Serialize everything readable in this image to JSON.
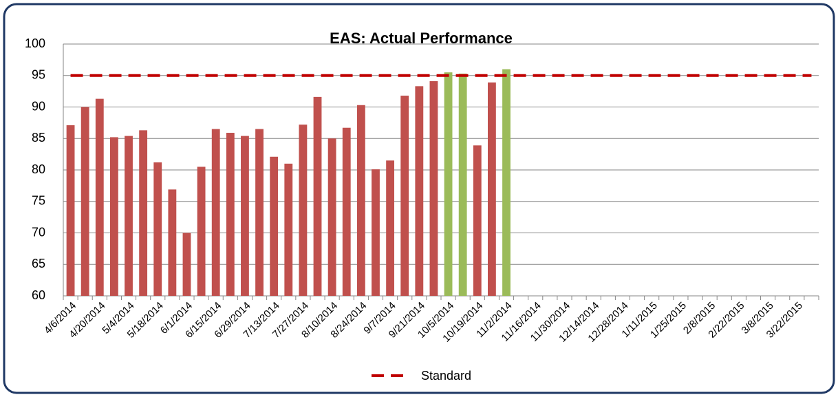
{
  "chart_data": {
    "type": "bar",
    "title": "EAS: Actual Performance",
    "categories": [
      "4/6/2014",
      null,
      "4/20/2014",
      null,
      "5/4/2014",
      null,
      "5/18/2014",
      null,
      "6/1/2014",
      null,
      "6/15/2014",
      null,
      "6/29/2014",
      null,
      "7/13/2014",
      null,
      "7/27/2014",
      null,
      "8/10/2014",
      null,
      "8/24/2014",
      null,
      "9/7/2014",
      null,
      "9/21/2014",
      null,
      "10/5/2014",
      null,
      "10/19/2014",
      null,
      "11/2/2014",
      null,
      "11/16/2014",
      null,
      "11/30/2014",
      null,
      "12/14/2014",
      null,
      "12/28/2014",
      null,
      "1/11/2015",
      null,
      "1/25/2015",
      null,
      "2/8/2015",
      null,
      "2/22/2015",
      null,
      "3/8/2015",
      null,
      "3/22/2015",
      null
    ],
    "values": [
      87.1,
      90,
      91.3,
      85.2,
      85.4,
      86.3,
      81.2,
      76.9,
      70,
      80.5,
      86.5,
      85.9,
      85.4,
      86.5,
      82.1,
      81,
      87.2,
      91.6,
      85,
      86.7,
      90.3,
      80.1,
      81.5,
      91.8,
      93.3,
      94.1,
      95.5,
      95.3,
      83.9,
      93.9,
      96,
      null,
      null,
      null,
      null,
      null,
      null,
      null,
      null,
      null,
      null,
      null,
      null,
      null,
      null,
      null,
      null,
      null,
      null,
      null,
      null,
      null
    ],
    "colors": [
      "#c0504d",
      "#c0504d",
      "#c0504d",
      "#c0504d",
      "#c0504d",
      "#c0504d",
      "#c0504d",
      "#c0504d",
      "#c0504d",
      "#c0504d",
      "#c0504d",
      "#c0504d",
      "#c0504d",
      "#c0504d",
      "#c0504d",
      "#c0504d",
      "#c0504d",
      "#c0504d",
      "#c0504d",
      "#c0504d",
      "#c0504d",
      "#c0504d",
      "#c0504d",
      "#c0504d",
      "#c0504d",
      "#c0504d",
      "#9bbb59",
      "#9bbb59",
      "#c0504d",
      "#c0504d",
      "#9bbb59",
      null,
      null,
      null,
      null,
      null,
      null,
      null,
      null,
      null,
      null,
      null,
      null,
      null,
      null,
      null,
      null,
      null,
      null,
      null,
      null,
      null
    ],
    "series": [
      {
        "name": "Standard",
        "color": "#c00000",
        "dashed": true,
        "values": [
          95,
          95,
          95,
          95,
          95,
          95,
          95,
          95,
          95,
          95,
          95,
          95,
          95,
          95,
          95,
          95,
          95,
          95,
          95,
          95,
          95,
          95,
          95,
          95,
          95,
          95,
          95,
          95,
          95,
          95,
          95,
          95,
          95,
          95,
          95,
          95,
          95,
          95,
          95,
          95,
          95,
          95,
          95,
          95,
          95,
          95,
          95,
          95,
          95,
          95,
          95,
          95
        ]
      }
    ],
    "ylim": [
      60,
      100
    ],
    "yticks": [
      60,
      65,
      70,
      75,
      80,
      85,
      90,
      95,
      100
    ],
    "grid": true,
    "legend": "bottom"
  }
}
